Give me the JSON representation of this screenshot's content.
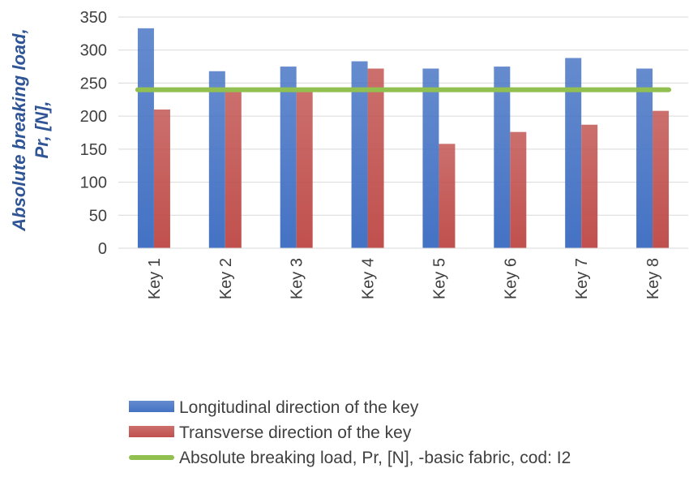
{
  "chart_data": {
    "type": "bar",
    "title": "",
    "xlabel": "",
    "ylabel": {
      "line1": "Absolute breaking load,",
      "line2": "Pr,  [N],"
    },
    "categories": [
      "Key 1",
      "Key 2",
      "Key 3",
      "Key 4",
      "Key 5",
      "Key 6",
      "Key 7",
      "Key 8"
    ],
    "series": [
      {
        "name": "Longitudinal direction of the key",
        "kind": "bar",
        "color": "#4472c4",
        "values": [
          333,
          268,
          275,
          283,
          272,
          275,
          288,
          272
        ]
      },
      {
        "name": "Transverse direction of the key",
        "kind": "bar",
        "color": "#c0504d",
        "values": [
          210,
          240,
          240,
          272,
          158,
          176,
          187,
          208
        ]
      },
      {
        "name": "Absolute breaking load, Pr, [N],  -basic fabric, cod: I2",
        "kind": "line",
        "color": "#92c050",
        "values": [
          240,
          240,
          240,
          240,
          240,
          240,
          240,
          240
        ]
      }
    ],
    "ylim": [
      0,
      350
    ],
    "yticks": [
      "0",
      "50",
      "100",
      "150",
      "200",
      "250",
      "300",
      "350"
    ],
    "grid": true,
    "legend_position": "bottom"
  }
}
